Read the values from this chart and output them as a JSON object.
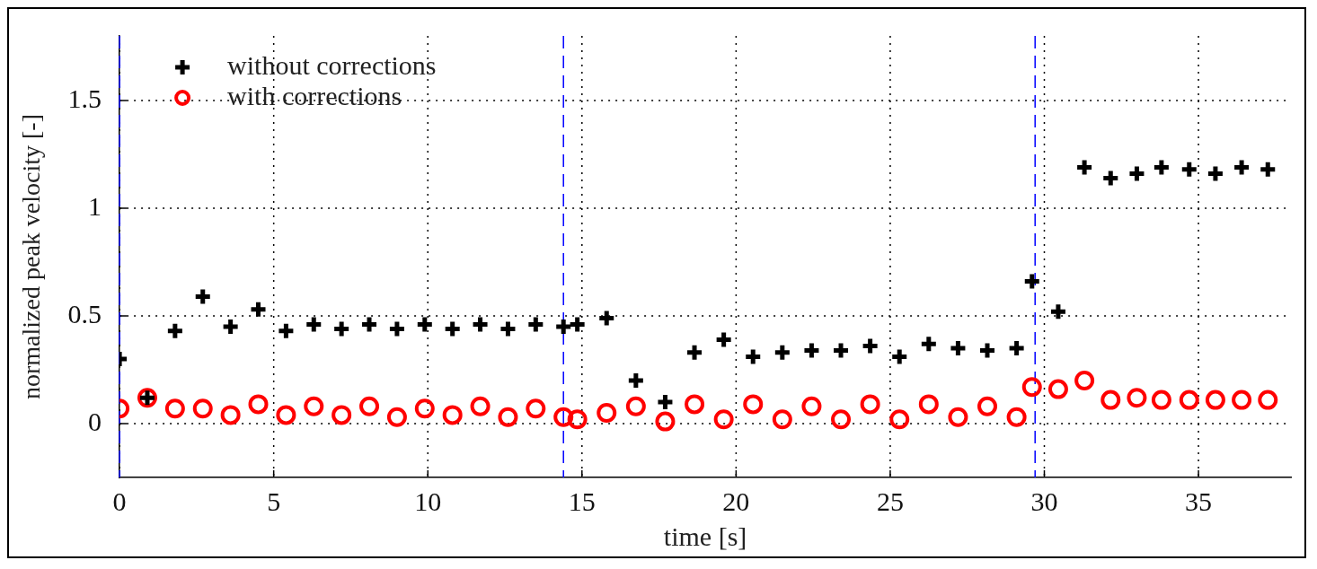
{
  "chart_data": {
    "type": "scatter",
    "xlabel": "time [s]",
    "ylabel": "normalized peak velocity [-]",
    "x": [
      0,
      0.9,
      1.8,
      2.7,
      3.6,
      4.5,
      5.4,
      6.3,
      7.2,
      8.1,
      9.0,
      9.9,
      10.8,
      11.7,
      12.6,
      13.5,
      14.4,
      14.85,
      15.8,
      16.75,
      17.7,
      18.65,
      19.6,
      20.55,
      21.5,
      22.45,
      23.4,
      24.35,
      25.3,
      26.25,
      27.2,
      28.15,
      29.1,
      29.6,
      30.45,
      31.3,
      32.15,
      33.0,
      33.8,
      34.7,
      35.55,
      36.4,
      37.25
    ],
    "series": [
      {
        "name": "without corrections",
        "color": "#000000",
        "marker": "cross",
        "values": [
          0.3,
          0.12,
          0.43,
          0.59,
          0.45,
          0.53,
          0.43,
          0.46,
          0.44,
          0.46,
          0.44,
          0.46,
          0.44,
          0.46,
          0.44,
          0.46,
          0.45,
          0.46,
          0.49,
          0.2,
          0.1,
          0.33,
          0.39,
          0.31,
          0.33,
          0.34,
          0.34,
          0.36,
          0.31,
          0.37,
          0.35,
          0.34,
          0.35,
          0.66,
          0.52,
          1.19,
          1.14,
          1.16,
          1.19,
          1.18,
          1.16,
          1.19,
          1.18
        ]
      },
      {
        "name": "with corrections",
        "color": "#ff0000",
        "marker": "circle",
        "values": [
          0.07,
          0.12,
          0.07,
          0.07,
          0.04,
          0.09,
          0.04,
          0.08,
          0.04,
          0.08,
          0.03,
          0.07,
          0.04,
          0.08,
          0.03,
          0.07,
          0.03,
          0.02,
          0.05,
          0.08,
          0.01,
          0.09,
          0.02,
          0.09,
          0.02,
          0.08,
          0.02,
          0.09,
          0.02,
          0.09,
          0.03,
          0.08,
          0.03,
          0.17,
          0.16,
          0.2,
          0.11,
          0.12,
          0.11,
          0.11,
          0.11,
          0.11,
          0.11
        ]
      }
    ],
    "xlim": [
      0,
      38
    ],
    "xticks": [
      0,
      5,
      10,
      15,
      20,
      25,
      30,
      35
    ],
    "ylim": [
      -0.25,
      1.8
    ],
    "yticks": [
      0,
      0.5,
      1,
      1.5
    ],
    "ref_lines": [
      {
        "axis": "x",
        "value": 0,
        "color": "#0000ff",
        "line_style": "dashed"
      },
      {
        "axis": "x",
        "value": 14.4,
        "color": "#0000ff",
        "line_style": "dashed"
      },
      {
        "axis": "x",
        "value": 29.7,
        "color": "#0000ff",
        "line_style": "dashed"
      }
    ],
    "grid": true,
    "legend": "top left"
  }
}
